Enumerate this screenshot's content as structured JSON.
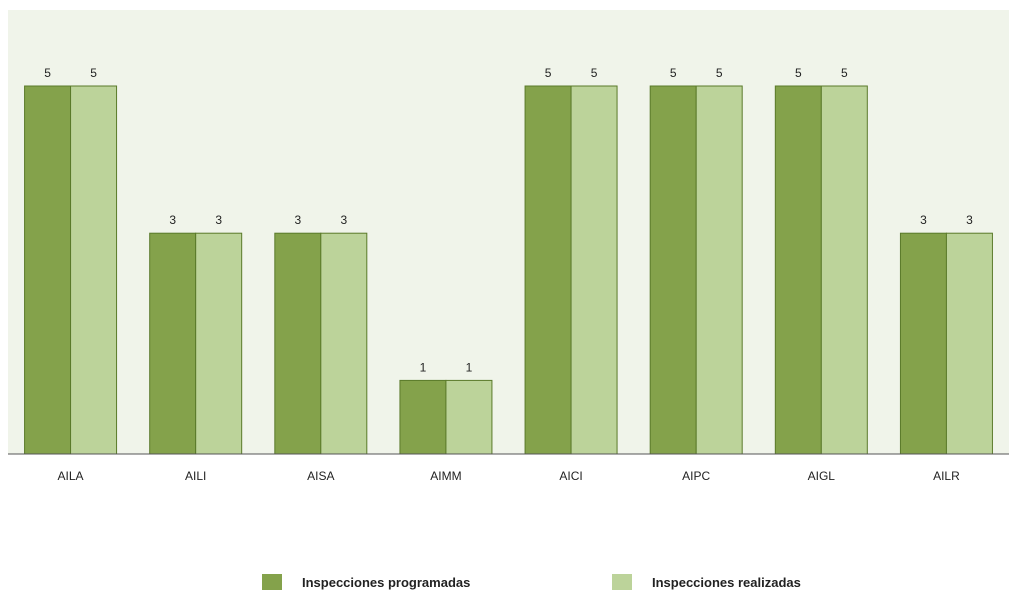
{
  "chart_data": {
    "type": "bar",
    "categories": [
      "AILA",
      "AILI",
      "AISA",
      "AIMM",
      "AICI",
      "AIPC",
      "AIGL",
      "AILR"
    ],
    "series": [
      {
        "name": "Inspecciones programadas",
        "values": [
          5,
          3,
          3,
          1,
          5,
          5,
          5,
          3
        ],
        "color": "#84a24b"
      },
      {
        "name": "Inspecciones realizadas",
        "values": [
          5,
          3,
          3,
          1,
          5,
          5,
          5,
          3
        ],
        "color": "#bcd39a"
      }
    ],
    "ylim": [
      0,
      6
    ],
    "grid": false,
    "data_labels": true,
    "legend_position": "bottom",
    "plot_background": "#f0f4ea",
    "bar_border_color": "#5a7a2a"
  }
}
